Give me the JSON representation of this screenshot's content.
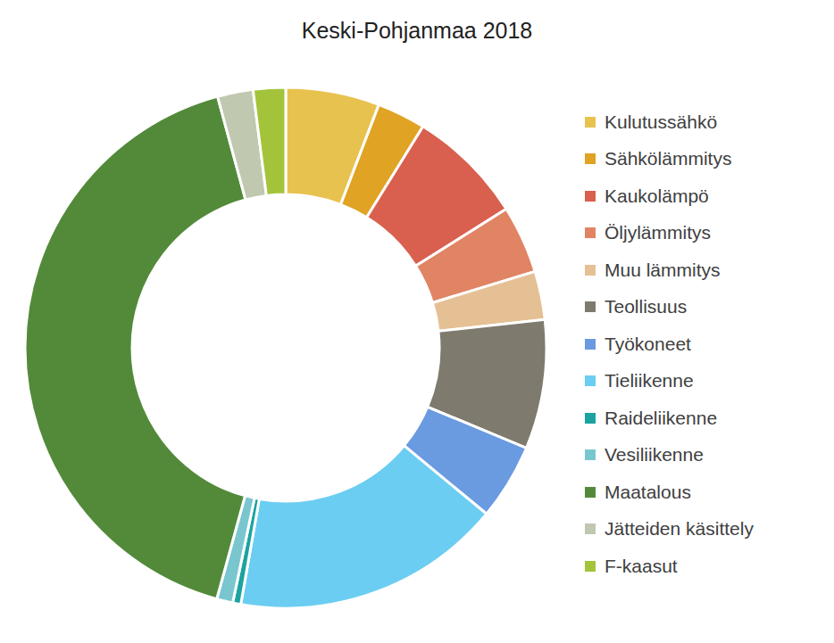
{
  "chart_data": {
    "type": "pie",
    "title": "Keski-Pohjanmaa 2018",
    "categories": [
      "Kulutussähkö",
      "Sähkölämmitys",
      "Kaukolämpö",
      "Öljylämmitys",
      "Muu lämmitys",
      "Teollisuus",
      "Työkoneet",
      "Tieliikenne",
      "Raideliikenne",
      "Vesiliikenne",
      "Maatalous",
      "Jätteiden käsittely",
      "F-kaasut"
    ],
    "values": [
      5.8,
      3.0,
      7.2,
      4.2,
      3.0,
      8.0,
      4.7,
      16.7,
      0.5,
      1.0,
      41.4,
      2.2,
      2.0
    ],
    "colors": [
      "#e8c24f",
      "#e0a324",
      "#d9604f",
      "#e08464",
      "#e5c095",
      "#7f7a6e",
      "#6a9ae0",
      "#6bcdf2",
      "#1aa3a0",
      "#79c6cf",
      "#528a3a",
      "#c0c8b0",
      "#a3c43a"
    ],
    "legend": "right"
  }
}
